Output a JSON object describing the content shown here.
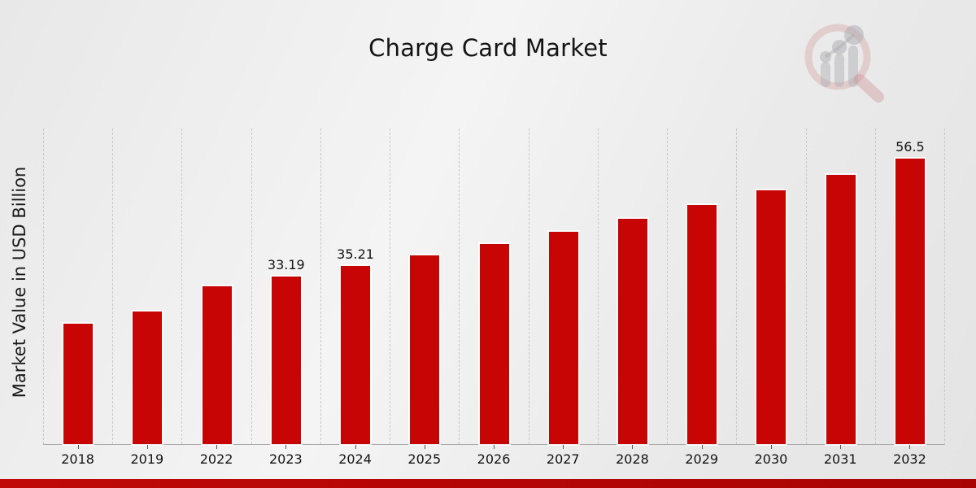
{
  "page": {
    "title": "Charge Card Market",
    "y_axis_label": "Market Value in USD Billion"
  },
  "watermark": {
    "icon": "magnifier-growth-chart-logo-icon"
  },
  "colors": {
    "bar": "#c80505",
    "bar_edge": "rgba(255,255,255,0.75)",
    "gridline": "#c9c9c9",
    "axis_line": "#aaaaaa",
    "text": "#141414",
    "bottom_strip_left": "#c00808",
    "bottom_strip_right": "#a90404",
    "background": "#ebebeb"
  },
  "chart_data": {
    "type": "bar",
    "title": "Charge Card Market",
    "xlabel": "",
    "ylabel": "Market Value in USD Billion",
    "categories": [
      "2018",
      "2019",
      "2022",
      "2023",
      "2024",
      "2025",
      "2026",
      "2027",
      "2028",
      "2029",
      "2030",
      "2031",
      "2032"
    ],
    "values": [
      23.8,
      26.2,
      31.2,
      33.19,
      35.21,
      37.36,
      39.63,
      42.05,
      44.62,
      47.34,
      50.22,
      53.28,
      56.5
    ],
    "bar_labels": [
      "",
      "",
      "",
      "33.19",
      "35.21",
      "",
      "",
      "",
      "",
      "",
      "",
      "",
      "56.5"
    ],
    "ylim": [
      0,
      62.5
    ],
    "grid": "vertical-dashed",
    "legend": "none",
    "bar_color": "#c80505"
  }
}
